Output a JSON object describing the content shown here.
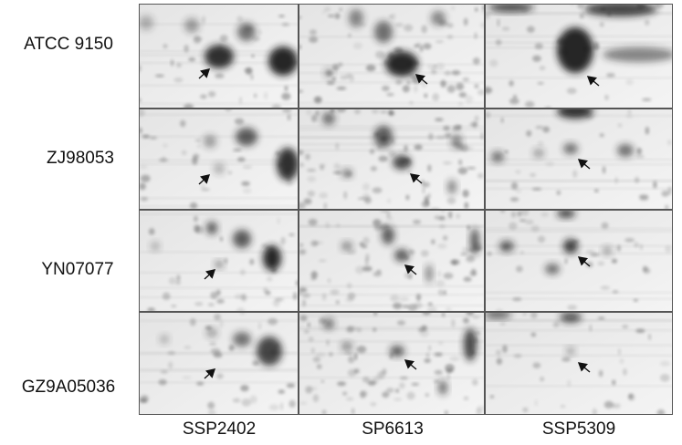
{
  "row_labels": [
    "ATCC 9150",
    "ZJ98053",
    "YN07077",
    "GZ9A05036"
  ],
  "column_labels": [
    "SSP2402",
    "SP6613",
    "SSP5309"
  ]
}
